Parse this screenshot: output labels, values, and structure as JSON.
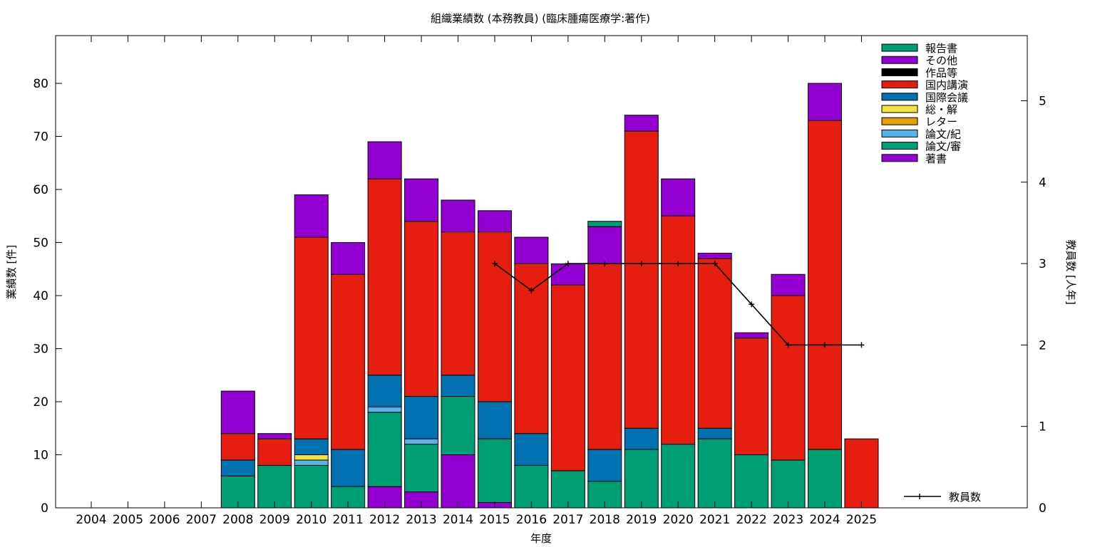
{
  "chart_data": {
    "type": "bar",
    "stacked": true,
    "title": "組織業績数 (本務教員) (臨床腫瘍医療学:著作)",
    "xlabel": "年度",
    "ylabel": "業績数 [件]",
    "y2label": "教員数 [人年]",
    "ylim": [
      0,
      89
    ],
    "y2lim": [
      0,
      5.8
    ],
    "yticks": [
      "0",
      "10",
      "20",
      "30",
      "40",
      "50",
      "60",
      "70",
      "80"
    ],
    "y2ticks": [
      "0",
      "1",
      "2",
      "3",
      "4",
      "5"
    ],
    "legend_position": "top-right",
    "grid": false,
    "categories": [
      "2004",
      "2005",
      "2006",
      "2007",
      "2008",
      "2009",
      "2010",
      "2011",
      "2012",
      "2013",
      "2014",
      "2015",
      "2016",
      "2017",
      "2018",
      "2019",
      "2020",
      "2021",
      "2022",
      "2023",
      "2024",
      "2025"
    ],
    "series": [
      {
        "name": "著書",
        "color": "#9400d3",
        "values": [
          0,
          0,
          0,
          0,
          0,
          0,
          0,
          0,
          4,
          3,
          10,
          1,
          0,
          0,
          0,
          0,
          0,
          0,
          0,
          0,
          0,
          0
        ]
      },
      {
        "name": "論文/審",
        "color": "#009e73",
        "values": [
          0,
          0,
          0,
          0,
          6,
          8,
          8,
          4,
          14,
          9,
          11,
          12,
          8,
          7,
          5,
          11,
          12,
          13,
          10,
          9,
          11,
          0
        ]
      },
      {
        "name": "論文/紀",
        "color": "#56b4e9",
        "values": [
          0,
          0,
          0,
          0,
          0,
          0,
          1,
          0,
          1,
          1,
          0,
          0,
          0,
          0,
          0,
          0,
          0,
          0,
          0,
          0,
          0,
          0
        ]
      },
      {
        "name": "レター",
        "color": "#e69f00",
        "values": [
          0,
          0,
          0,
          0,
          0,
          0,
          0,
          0,
          0,
          0,
          0,
          0,
          0,
          0,
          0,
          0,
          0,
          0,
          0,
          0,
          0,
          0
        ]
      },
      {
        "name": "総・解",
        "color": "#f0e442",
        "values": [
          0,
          0,
          0,
          0,
          0,
          0,
          1,
          0,
          0,
          0,
          0,
          0,
          0,
          0,
          0,
          0,
          0,
          0,
          0,
          0,
          0,
          0
        ]
      },
      {
        "name": "国際会議",
        "color": "#0072b2",
        "values": [
          0,
          0,
          0,
          0,
          3,
          0,
          3,
          7,
          6,
          8,
          4,
          7,
          6,
          0,
          6,
          4,
          0,
          2,
          0,
          0,
          0,
          0
        ]
      },
      {
        "name": "国内講演",
        "color": "#e51e10",
        "values": [
          0,
          0,
          0,
          0,
          5,
          5,
          38,
          33,
          37,
          33,
          27,
          32,
          32,
          35,
          35,
          56,
          43,
          32,
          22,
          31,
          62,
          13
        ]
      },
      {
        "name": "作品等",
        "color": "#000000",
        "values": [
          0,
          0,
          0,
          0,
          0,
          0,
          0,
          0,
          0,
          0,
          0,
          0,
          0,
          0,
          0,
          0,
          0,
          0,
          0,
          0,
          0,
          0
        ]
      },
      {
        "name": "その他",
        "color": "#9400d3",
        "values": [
          0,
          0,
          0,
          0,
          8,
          1,
          8,
          6,
          7,
          8,
          6,
          4,
          5,
          4,
          7,
          3,
          7,
          1,
          1,
          4,
          7,
          0
        ]
      },
      {
        "name": "報告書",
        "color": "#009e73",
        "values": [
          0,
          0,
          0,
          0,
          0,
          0,
          0,
          0,
          0,
          0,
          0,
          0,
          0,
          0,
          1,
          0,
          0,
          0,
          0,
          0,
          0,
          0
        ]
      }
    ],
    "line_series": {
      "name": "教員数",
      "color": "#000000",
      "x": [
        "2015",
        "2016",
        "2017",
        "2018",
        "2019",
        "2020",
        "2021",
        "2022",
        "2023",
        "2024",
        "2025"
      ],
      "values": [
        3,
        2.67,
        3,
        3,
        3,
        3,
        3,
        2.5,
        2,
        2,
        2
      ]
    }
  }
}
